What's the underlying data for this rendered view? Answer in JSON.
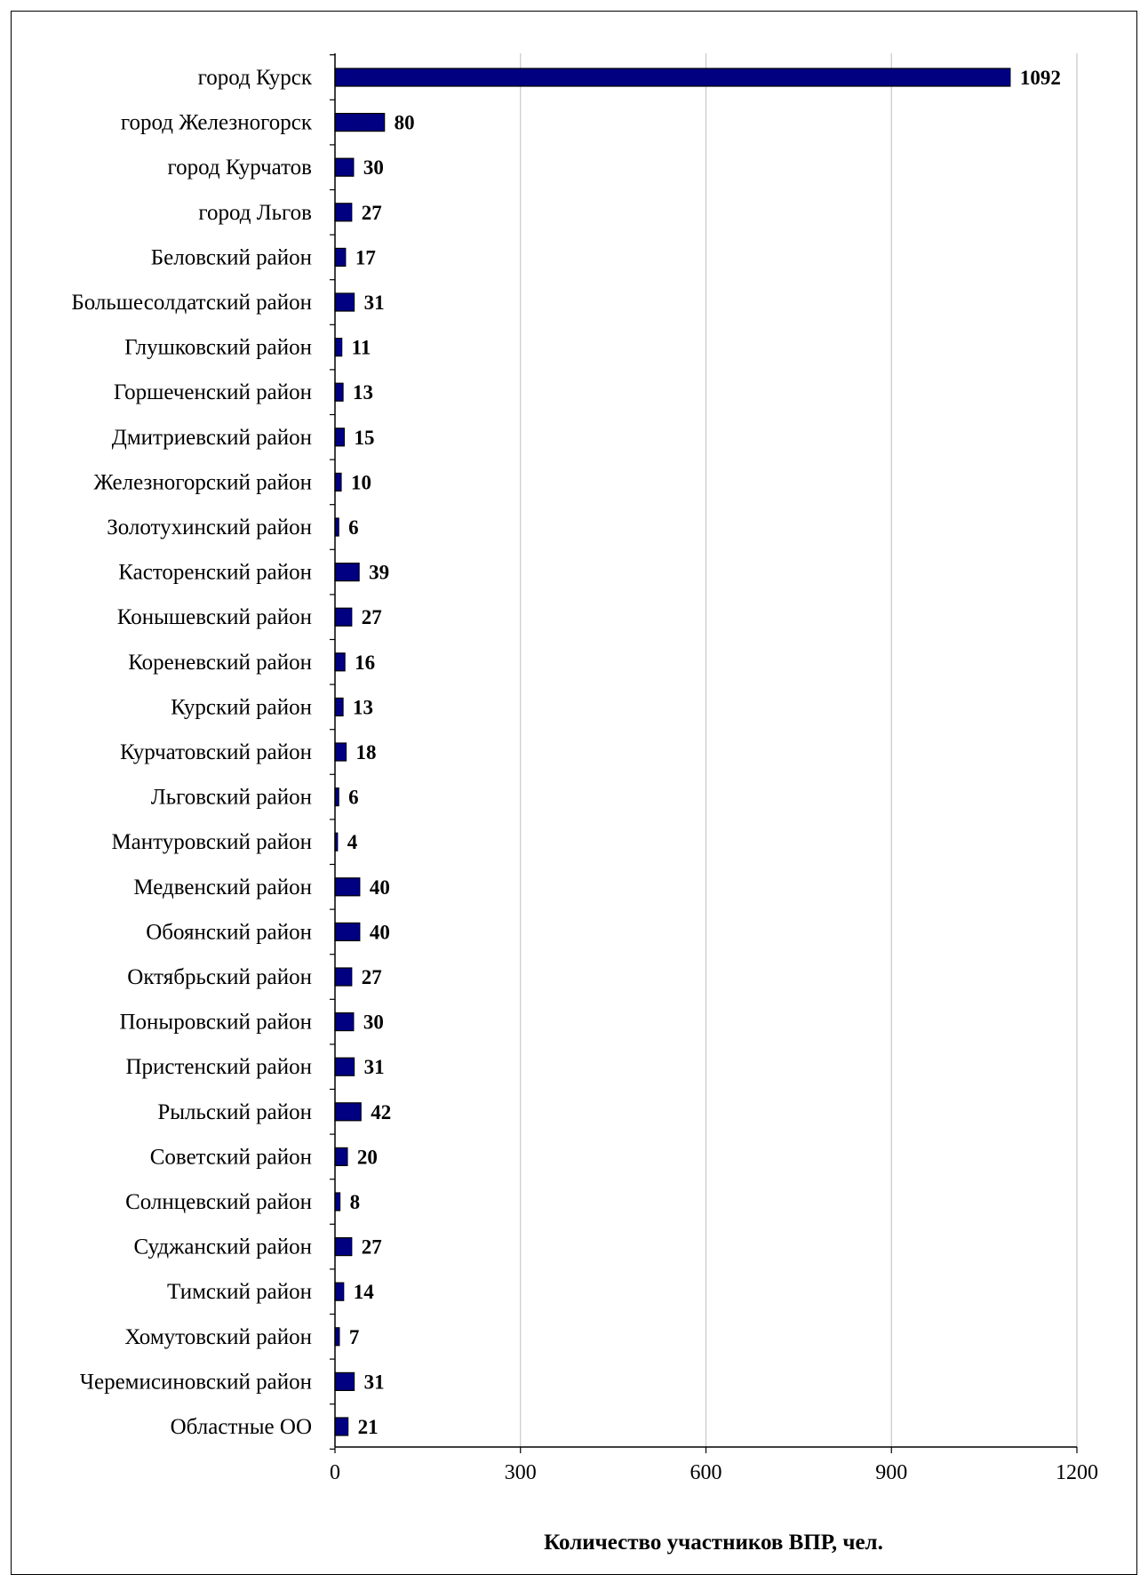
{
  "chart_data": {
    "type": "bar",
    "orientation": "horizontal",
    "categories": [
      "город Курск",
      "город Железногорск",
      "город Курчатов",
      "город Льгов",
      "Беловский район",
      "Большесолдатский район",
      "Глушковский район",
      "Горшеченский район",
      "Дмитриевский район",
      "Железногорский район",
      "Золотухинский район",
      "Касторенский район",
      "Конышевский район",
      "Кореневский район",
      "Курский район",
      "Курчатовский район",
      "Льговский район",
      "Мантуровский район",
      "Медвенский район",
      "Обоянский район",
      "Октябрьский район",
      "Поныровский район",
      "Пристенский район",
      "Рыльский район",
      "Советский район",
      "Солнцевский район",
      "Суджанский район",
      "Тимский район",
      "Хомутовский район",
      "Черемисиновский район",
      "Областные ОО"
    ],
    "values": [
      1092,
      80,
      30,
      27,
      17,
      31,
      11,
      13,
      15,
      10,
      6,
      39,
      27,
      16,
      13,
      18,
      6,
      4,
      40,
      40,
      27,
      30,
      31,
      42,
      20,
      8,
      27,
      14,
      7,
      31,
      21
    ],
    "xlabel": "Количество участников  ВПР, чел.",
    "xlim": [
      0,
      1200
    ],
    "xticks": [
      0,
      300,
      600,
      900,
      1200
    ],
    "grid": "vertical",
    "bar_color": "#000080",
    "bar_edge_color": "#000000",
    "grid_color": "#c8c8c8",
    "data_labels": true
  }
}
